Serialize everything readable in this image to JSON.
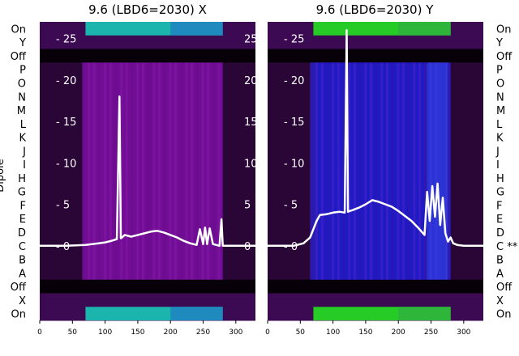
{
  "chart_data": [
    {
      "type": "heatmap",
      "title": "9.6 (LBD6=2030) X",
      "ylabel": "Dipole",
      "xlim": [
        0,
        330
      ],
      "ylim": [
        -9,
        27
      ],
      "x_ticks": [
        0,
        50,
        100,
        150,
        200,
        250,
        300
      ],
      "y_ticks": [
        0,
        5,
        10,
        15,
        20,
        25
      ],
      "row_labels": [
        "On",
        "Y",
        "Off",
        "P",
        "O",
        "N",
        "M",
        "L",
        "K",
        "J",
        "I",
        "H",
        "G",
        "F",
        "E",
        "D",
        "C",
        "B",
        "A",
        "Off",
        "X",
        "On"
      ],
      "overlay_line": {
        "color": "#ffffff",
        "x": [
          0,
          40,
          70,
          90,
          100,
          110,
          118,
          122,
          124,
          126,
          130,
          140,
          150,
          160,
          170,
          180,
          190,
          200,
          210,
          220,
          230,
          240,
          245,
          250,
          253,
          256,
          260,
          265,
          270,
          275,
          278,
          280,
          283,
          290,
          300,
          330
        ],
        "y": [
          0,
          0,
          0.1,
          0.3,
          0.4,
          0.6,
          0.8,
          18,
          0.9,
          1.0,
          1.3,
          1.1,
          1.3,
          1.5,
          1.7,
          1.8,
          1.6,
          1.3,
          1.0,
          0.6,
          0.3,
          0.1,
          2.0,
          0.2,
          2.2,
          0.2,
          2.1,
          0.2,
          0.1,
          0,
          3.2,
          0,
          0,
          0,
          0,
          0
        ]
      }
    },
    {
      "type": "heatmap",
      "title": "9.6 (LBD6=2030) Y",
      "xlim": [
        0,
        330
      ],
      "ylim": [
        -9,
        27
      ],
      "x_ticks": [
        0,
        50,
        100,
        150,
        200,
        250,
        300
      ],
      "y_ticks": [
        0,
        5,
        10,
        15,
        20,
        25
      ],
      "row_labels": [
        "On",
        "Y",
        "Off",
        "P",
        "O",
        "N",
        "M",
        "L",
        "K",
        "J",
        "I",
        "H",
        "G",
        "F",
        "E",
        "D",
        "C **",
        "B",
        "A",
        "Off",
        "X",
        "On"
      ],
      "overlay_line": {
        "color": "#ffffff",
        "x": [
          0,
          40,
          55,
          65,
          70,
          75,
          80,
          90,
          100,
          110,
          118,
          121,
          123,
          126,
          130,
          140,
          150,
          160,
          170,
          180,
          190,
          200,
          210,
          220,
          230,
          240,
          244,
          248,
          252,
          256,
          260,
          264,
          268,
          272,
          276,
          280,
          284,
          290,
          300,
          330
        ],
        "y": [
          0,
          0,
          0.3,
          1.0,
          2.0,
          3.0,
          3.7,
          3.8,
          4.0,
          4.1,
          4.0,
          26,
          4.1,
          4.2,
          4.3,
          4.6,
          5.0,
          5.5,
          5.3,
          5.0,
          4.7,
          4.2,
          3.6,
          3.0,
          2.2,
          1.3,
          6.5,
          3.0,
          7.2,
          3.5,
          7.5,
          2.5,
          5.8,
          1.5,
          0.5,
          1.0,
          0.3,
          0.1,
          0,
          0
        ]
      }
    }
  ]
}
